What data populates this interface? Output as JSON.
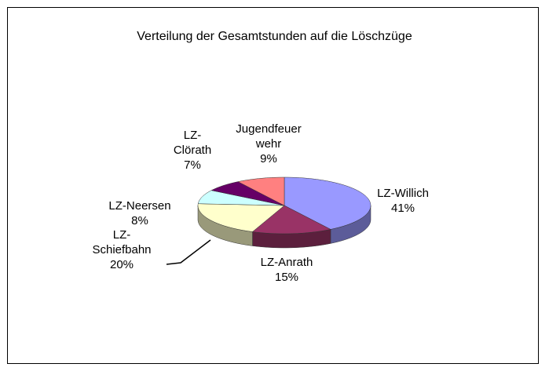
{
  "chart_data": {
    "type": "pie",
    "title": "Verteilung der Gesamtstunden auf die Löschzüge",
    "categories": [
      "LZ-Willich",
      "LZ-Anrath",
      "LZ-Schiefbahn",
      "LZ-Neersen",
      "LZ-Clörath",
      "Jugendfeuerwehr"
    ],
    "values": [
      41,
      15,
      20,
      8,
      7,
      9
    ],
    "value_labels": [
      "41%",
      "15%",
      "20%",
      "8%",
      "7%",
      "9%"
    ],
    "colors": [
      "#9999ff",
      "#993366",
      "#ffffcc",
      "#ccffff",
      "#660066",
      "#ff8080"
    ]
  }
}
